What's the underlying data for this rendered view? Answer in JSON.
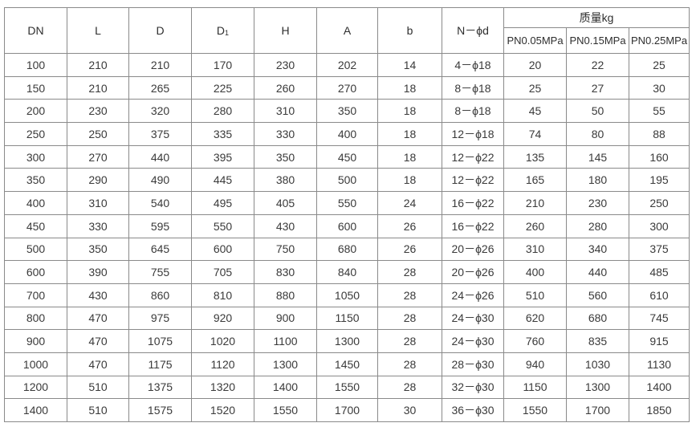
{
  "table": {
    "headers": [
      "DN",
      "L",
      "D",
      "D1",
      "H",
      "A",
      "b",
      "N－ϕd"
    ],
    "mass_group": "质量kg",
    "mass_headers": [
      "PN0.05MPa",
      "PN0.15MPa",
      "PN0.25MPa"
    ],
    "rows": [
      [
        "100",
        "210",
        "210",
        "170",
        "230",
        "202",
        "14",
        "4－ϕ18",
        "20",
        "22",
        "25"
      ],
      [
        "150",
        "210",
        "265",
        "225",
        "260",
        "270",
        "18",
        "8－ϕ18",
        "25",
        "27",
        "30"
      ],
      [
        "200",
        "230",
        "320",
        "280",
        "310",
        "350",
        "18",
        "8－ϕ18",
        "45",
        "50",
        "55"
      ],
      [
        "250",
        "250",
        "375",
        "335",
        "330",
        "400",
        "18",
        "12－ϕ18",
        "74",
        "80",
        "88"
      ],
      [
        "300",
        "270",
        "440",
        "395",
        "350",
        "450",
        "18",
        "12－ϕ22",
        "135",
        "145",
        "160"
      ],
      [
        "350",
        "290",
        "490",
        "445",
        "380",
        "500",
        "18",
        "12－ϕ22",
        "165",
        "180",
        "195"
      ],
      [
        "400",
        "310",
        "540",
        "495",
        "405",
        "550",
        "24",
        "16－ϕ22",
        "210",
        "230",
        "250"
      ],
      [
        "450",
        "330",
        "595",
        "550",
        "430",
        "600",
        "26",
        "16－ϕ22",
        "260",
        "280",
        "300"
      ],
      [
        "500",
        "350",
        "645",
        "600",
        "750",
        "680",
        "26",
        "20－ϕ26",
        "310",
        "340",
        "375"
      ],
      [
        "600",
        "390",
        "755",
        "705",
        "830",
        "840",
        "28",
        "20－ϕ26",
        "400",
        "440",
        "485"
      ],
      [
        "700",
        "430",
        "860",
        "810",
        "880",
        "1050",
        "28",
        "24－ϕ26",
        "510",
        "560",
        "610"
      ],
      [
        "800",
        "470",
        "975",
        "920",
        "900",
        "1150",
        "28",
        "24－ϕ30",
        "620",
        "680",
        "745"
      ],
      [
        "900",
        "470",
        "1075",
        "1020",
        "1100",
        "1300",
        "28",
        "24－ϕ30",
        "760",
        "835",
        "915"
      ],
      [
        "1000",
        "470",
        "1175",
        "1120",
        "1300",
        "1450",
        "28",
        "28－ϕ30",
        "940",
        "1030",
        "1130"
      ],
      [
        "1200",
        "510",
        "1375",
        "1320",
        "1400",
        "1550",
        "28",
        "32－ϕ30",
        "1150",
        "1300",
        "1400"
      ],
      [
        "1400",
        "510",
        "1575",
        "1520",
        "1550",
        "1700",
        "30",
        "36－ϕ30",
        "1550",
        "1700",
        "1850"
      ]
    ]
  }
}
